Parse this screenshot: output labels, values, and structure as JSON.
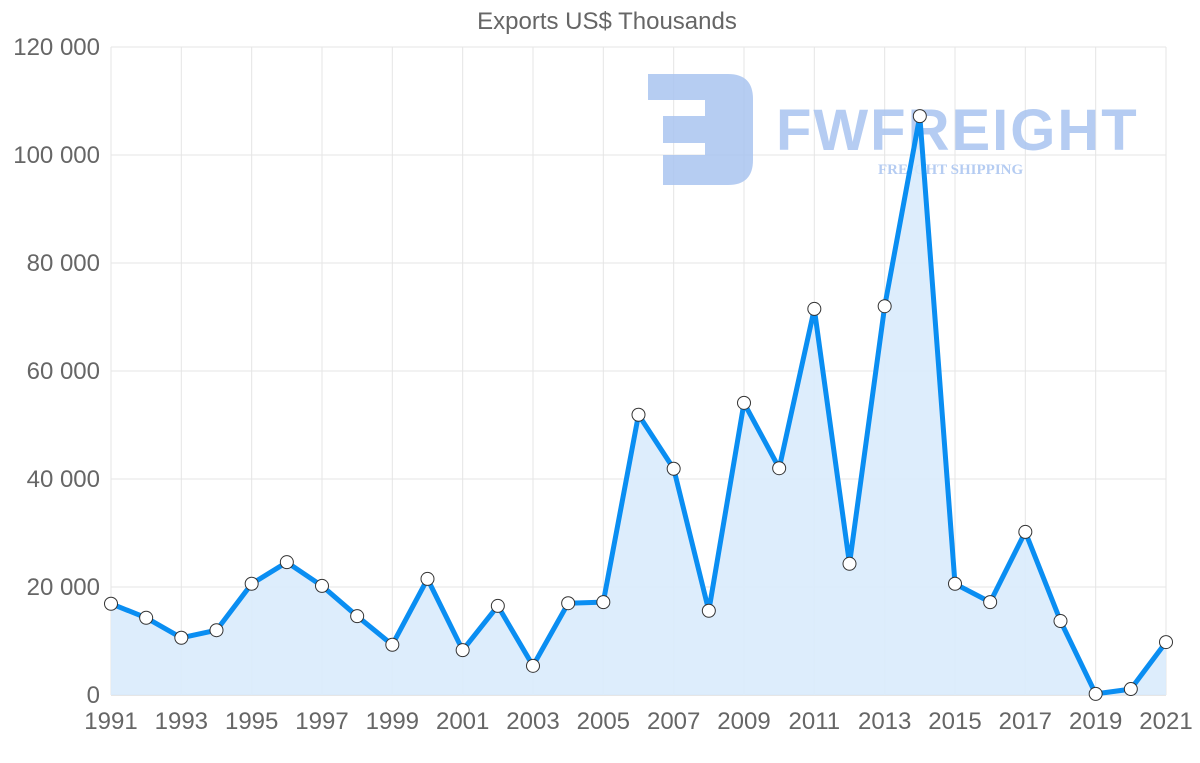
{
  "chart_data": {
    "type": "area",
    "title": "Exports US$ Thousands",
    "xlabel": "",
    "ylabel": "",
    "ylim": [
      0,
      120000
    ],
    "yticks": [
      0,
      20000,
      40000,
      60000,
      80000,
      100000,
      120000
    ],
    "ytick_labels": [
      "0",
      "20 000",
      "40 000",
      "60 000",
      "80 000",
      "100 000",
      "120 000"
    ],
    "xtick_labels": [
      "1991",
      "1993",
      "1995",
      "1997",
      "1999",
      "2001",
      "2003",
      "2005",
      "2007",
      "2009",
      "2011",
      "2013",
      "2015",
      "2017",
      "2019",
      "2021"
    ],
    "grid": true,
    "legend": "none",
    "x": [
      1991,
      1992,
      1993,
      1994,
      1995,
      1996,
      1997,
      1998,
      1999,
      2000,
      2001,
      2002,
      2003,
      2004,
      2005,
      2006,
      2007,
      2008,
      2009,
      2010,
      2011,
      2012,
      2013,
      2014,
      2015,
      2016,
      2017,
      2018,
      2019,
      2020,
      2021
    ],
    "series": [
      {
        "name": "Exports US$ Thousands",
        "values": [
          16900,
          14300,
          10600,
          12000,
          20600,
          24600,
          20200,
          14600,
          9300,
          21500,
          8300,
          16500,
          5400,
          17000,
          17200,
          51900,
          41900,
          15600,
          54100,
          42000,
          71500,
          24300,
          72000,
          107200,
          20600,
          17200,
          30200,
          13700,
          200,
          1100,
          9800
        ],
        "color": "#0a8ef2",
        "fill": "#d9ebfc"
      }
    ]
  },
  "watermark": {
    "brand": "FWFREIGHT",
    "tagline": "FREIGHT SHIPPING",
    "color": "#a9c4f0"
  }
}
